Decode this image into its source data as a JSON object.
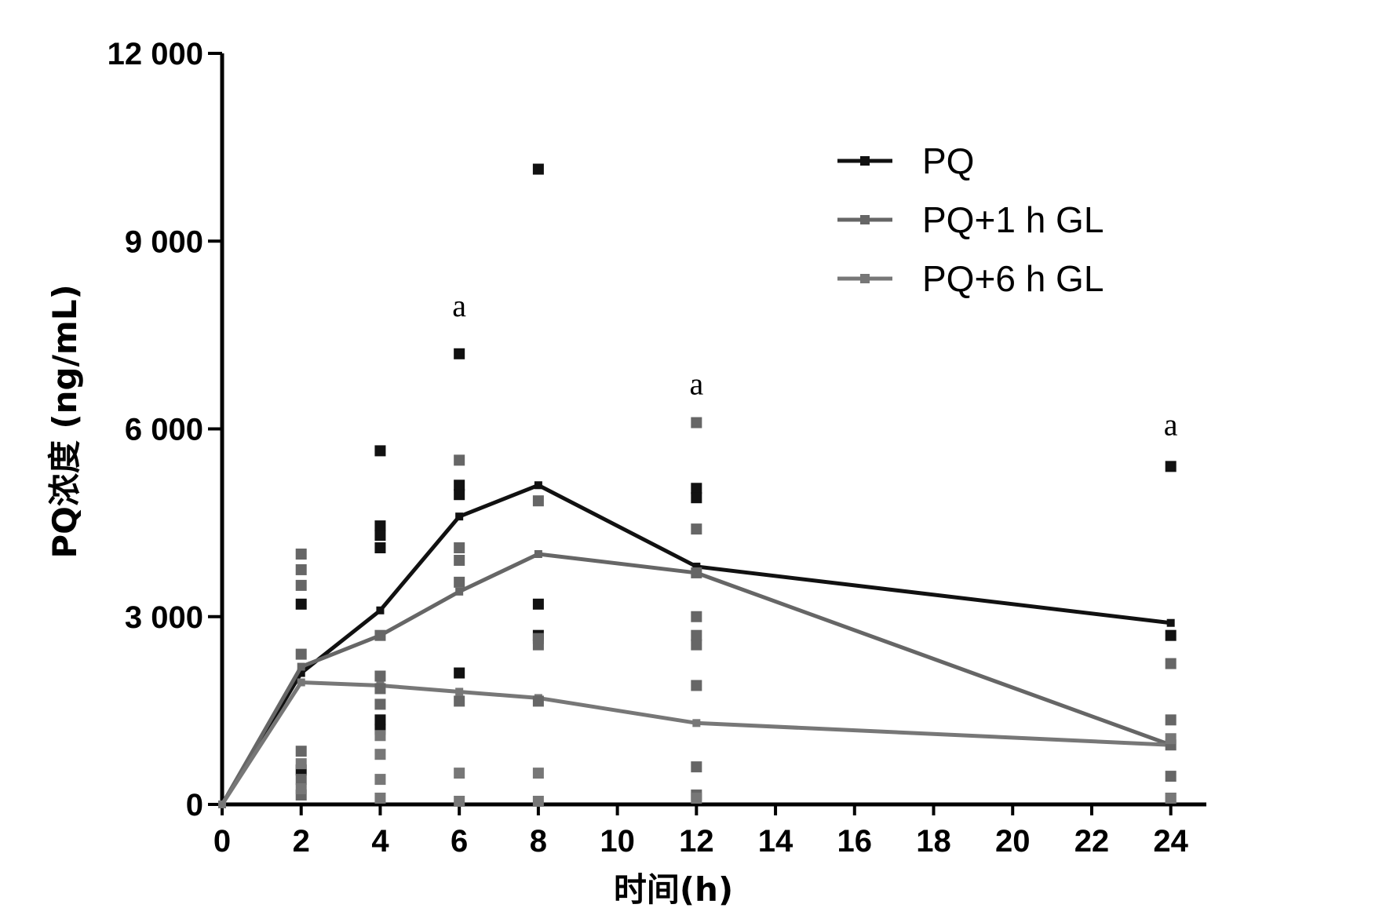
{
  "chart_data": {
    "type": "line",
    "title": "",
    "xlabel": "时间(h)",
    "ylabel": "PQ浓度 (ng/mL)",
    "xlim": [
      0,
      24.9
    ],
    "ylim": [
      0,
      12000
    ],
    "x_ticks": [
      0,
      2,
      4,
      6,
      8,
      10,
      12,
      14,
      16,
      18,
      20,
      22,
      24
    ],
    "y_ticks": [
      0,
      3000,
      6000,
      9000,
      12000
    ],
    "y_tick_labels": [
      "0",
      "3 000",
      "6 000",
      "9 000",
      "12 000"
    ],
    "x_tick_labels": [
      "0",
      "2",
      "4",
      "6",
      "8",
      "10",
      "12",
      "14",
      "16",
      "18",
      "20",
      "22",
      "24"
    ],
    "grid": false,
    "legend_position": "top-right",
    "series": [
      {
        "name": "PQ",
        "color": "#111111",
        "x": [
          0,
          2,
          4,
          6,
          8,
          12,
          24
        ],
        "y": [
          0,
          2100,
          3100,
          4600,
          5100,
          3800,
          2900
        ],
        "points": [
          [
            2,
            3200
          ],
          [
            2,
            550
          ],
          [
            4,
            5650
          ],
          [
            4,
            4450
          ],
          [
            4,
            4300
          ],
          [
            4,
            4100
          ],
          [
            4,
            1350
          ],
          [
            4,
            1200
          ],
          [
            6,
            7200
          ],
          [
            6,
            5100
          ],
          [
            6,
            4950
          ],
          [
            6,
            2100
          ],
          [
            8,
            10150
          ],
          [
            8,
            3200
          ],
          [
            8,
            2700
          ],
          [
            12,
            5050
          ],
          [
            12,
            4900
          ],
          [
            24,
            5400
          ],
          [
            24,
            2700
          ]
        ]
      },
      {
        "name": "PQ+1 h GL",
        "color": "#666666",
        "x": [
          0,
          2,
          4,
          6,
          8,
          12,
          24
        ],
        "y": [
          0,
          2200,
          2700,
          3400,
          4000,
          3700,
          950
        ],
        "points": [
          [
            2,
            4000
          ],
          [
            2,
            3750
          ],
          [
            2,
            3500
          ],
          [
            2,
            2400
          ],
          [
            2,
            850
          ],
          [
            2,
            400
          ],
          [
            2,
            150
          ],
          [
            4,
            2700
          ],
          [
            4,
            2050
          ],
          [
            4,
            1850
          ],
          [
            4,
            1600
          ],
          [
            6,
            5500
          ],
          [
            6,
            4100
          ],
          [
            6,
            3900
          ],
          [
            6,
            3550
          ],
          [
            6,
            1650
          ],
          [
            8,
            4850
          ],
          [
            8,
            2650
          ],
          [
            8,
            2550
          ],
          [
            8,
            1650
          ],
          [
            12,
            6100
          ],
          [
            12,
            4400
          ],
          [
            12,
            3700
          ],
          [
            12,
            3000
          ],
          [
            12,
            2700
          ],
          [
            12,
            2550
          ],
          [
            12,
            1900
          ],
          [
            12,
            600
          ],
          [
            12,
            150
          ],
          [
            24,
            2250
          ],
          [
            24,
            1350
          ],
          [
            24,
            950
          ],
          [
            24,
            450
          ],
          [
            24,
            100
          ]
        ]
      },
      {
        "name": "PQ+6 h GL",
        "color": "#777777",
        "x": [
          0,
          2,
          4,
          6,
          8,
          12,
          24
        ],
        "y": [
          0,
          1950,
          1900,
          1800,
          1700,
          1300,
          950
        ],
        "points": [
          [
            2,
            650
          ],
          [
            2,
            250
          ],
          [
            4,
            1100
          ],
          [
            4,
            800
          ],
          [
            4,
            400
          ],
          [
            4,
            100
          ],
          [
            6,
            500
          ],
          [
            6,
            50
          ],
          [
            8,
            500
          ],
          [
            8,
            50
          ],
          [
            12,
            100
          ],
          [
            24,
            1050
          ],
          [
            24,
            100
          ]
        ]
      }
    ],
    "annotations": [
      {
        "text": "a",
        "x": 6,
        "y": 7800
      },
      {
        "text": "a",
        "x": 12,
        "y": 6550
      },
      {
        "text": "a",
        "x": 24,
        "y": 5900
      }
    ]
  }
}
